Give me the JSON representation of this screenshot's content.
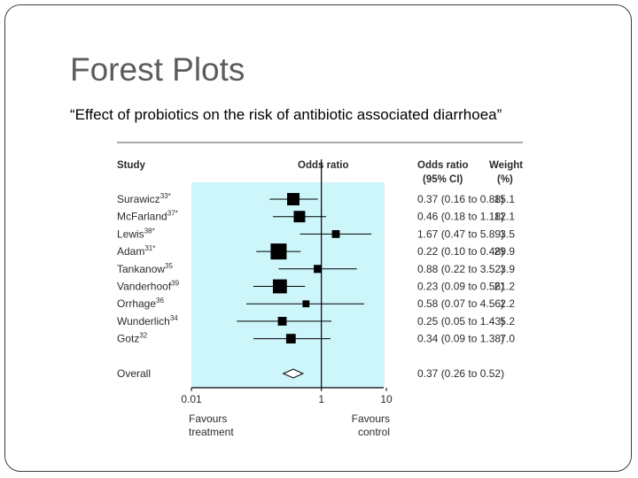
{
  "slide": {
    "title": "Forest Plots",
    "subtitle": "“Effect of probiotics on the risk of antibiotic associated diarrhoea”"
  },
  "colors": {
    "shade": "#ccf6fa",
    "marker": "#000000",
    "text": "#2b2b2b"
  },
  "chart_data": {
    "type": "forest",
    "scale": "log",
    "xlim": [
      0.01,
      10
    ],
    "ticks": [
      "0.01",
      "1",
      "10"
    ],
    "headers": {
      "study": "Study",
      "plot": "Odds ratio",
      "ci_line1": "Odds ratio",
      "ci_line2": "(95% CI)",
      "weight_line1": "Weight",
      "weight_line2": "(%)"
    },
    "favours_left": [
      "Favours",
      "treatment"
    ],
    "favours_right": [
      "Favours",
      "control"
    ],
    "studies": [
      {
        "name": "Surawicz",
        "ref": "33*",
        "or": 0.37,
        "lo": 0.16,
        "hi": 0.88,
        "ci_text": "0.37 (0.16 to 0.88)",
        "weight": "15.1"
      },
      {
        "name": "McFarland",
        "ref": "37*",
        "or": 0.46,
        "lo": 0.18,
        "hi": 1.18,
        "ci_text": "0.46 (0.18 to 1.18)",
        "weight": "12.1"
      },
      {
        "name": "Lewis",
        "ref": "38*",
        "or": 1.67,
        "lo": 0.47,
        "hi": 5.89,
        "ci_text": "1.67 (0.47 to 5.89)",
        "weight": "3.5"
      },
      {
        "name": "Adam",
        "ref": "31*",
        "or": 0.22,
        "lo": 0.1,
        "hi": 0.48,
        "ci_text": "0.22 (0.10 to 0.48)",
        "weight": "29.9"
      },
      {
        "name": "Tankanow",
        "ref": "35",
        "or": 0.88,
        "lo": 0.22,
        "hi": 3.52,
        "ci_text": "0.88 (0.22 to 3.52)",
        "weight": "3.9"
      },
      {
        "name": "Vanderhoof",
        "ref": "39",
        "or": 0.23,
        "lo": 0.09,
        "hi": 0.56,
        "ci_text": "0.23 (0.09 to 0.56)",
        "weight": "21.2"
      },
      {
        "name": "Orrhage",
        "ref": "36",
        "or": 0.58,
        "lo": 0.07,
        "hi": 4.56,
        "ci_text": "0.58 (0.07 to 4.56)",
        "weight": "2.2"
      },
      {
        "name": "Wunderlich",
        "ref": "34",
        "or": 0.25,
        "lo": 0.05,
        "hi": 1.43,
        "ci_text": "0.25 (0.05 to 1.43)",
        "weight": "5.2"
      },
      {
        "name": "Gotz",
        "ref": "32",
        "or": 0.34,
        "lo": 0.09,
        "hi": 1.38,
        "ci_text": "0.34 (0.09 to 1.38)",
        "weight": "7.0"
      }
    ],
    "overall": {
      "name": "Overall",
      "or": 0.37,
      "lo": 0.26,
      "hi": 0.52,
      "ci_text": "0.37 (0.26 to 0.52)"
    }
  }
}
